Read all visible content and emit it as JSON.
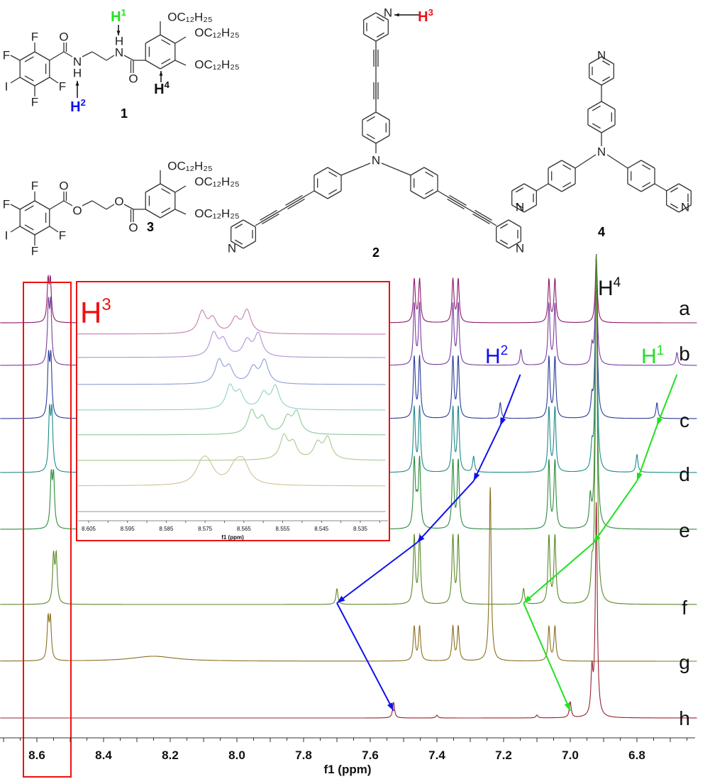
{
  "structures": {
    "c1": {
      "label": "1",
      "atoms": {
        "F": "F",
        "I": "I",
        "O": "O",
        "N": "N",
        "H": "H",
        "chain": "OC₁₂H₂₅"
      }
    },
    "c3": {
      "label": "3",
      "atoms": {
        "F": "F",
        "I": "I",
        "O": "O",
        "chain": "OC₁₂H₂₅"
      }
    },
    "c2": {
      "label": "2",
      "atoms": {
        "N": "N"
      }
    },
    "c4": {
      "label": "4",
      "atoms": {
        "N": "N"
      }
    },
    "protons": {
      "H1": {
        "base": "H",
        "sup": "1",
        "color": "#22e022"
      },
      "H2": {
        "base": "H",
        "sup": "2",
        "color": "#1010ee"
      },
      "H3": {
        "base": "H",
        "sup": "3",
        "color": "#ee1010"
      },
      "H4": {
        "base": "H",
        "sup": "4",
        "color": "#111111"
      }
    }
  },
  "chart_data": [
    {
      "type": "line",
      "title": "",
      "xlabel": "f1 (ppm)",
      "ylabel": "",
      "xlim": [
        8.71,
        6.63
      ],
      "x_reversed": true,
      "x_ticks": [
        "8.6",
        "8.4",
        "8.2",
        "8.0",
        "7.8",
        "7.6",
        "7.4",
        "7.2",
        "7.0",
        "6.8"
      ],
      "highlight_region_ppm": [
        8.62,
        8.48
      ],
      "annotations": [
        {
          "text_base": "H",
          "text_sup": "4",
          "color": "#111111",
          "ppm": 6.92
        },
        {
          "text_base": "H",
          "text_sup": "2",
          "color": "#1010ee",
          "path_ppm": [
            7.15,
            7.21,
            7.29,
            7.46,
            7.7,
            7.53
          ]
        },
        {
          "text_base": "H",
          "text_sup": "1",
          "color": "#22e022",
          "path_ppm": [
            6.68,
            6.74,
            6.8,
            6.93,
            7.14,
            7.0
          ]
        }
      ],
      "series": [
        {
          "name": "a",
          "color": "#8b1a6b",
          "peaks": [
            [
              8.5665,
              55
            ],
            [
              8.5595,
              55
            ],
            [
              7.468,
              60
            ],
            [
              7.452,
              60
            ],
            [
              7.352,
              60
            ],
            [
              7.336,
              60
            ],
            [
              7.064,
              60
            ],
            [
              7.046,
              60
            ],
            [
              6.922,
              95
            ]
          ]
        },
        {
          "name": "b",
          "color": "#7a3d9e",
          "peaks": [
            [
              8.5655,
              80
            ],
            [
              8.5585,
              80
            ],
            [
              7.468,
              85
            ],
            [
              7.452,
              85
            ],
            [
              7.352,
              85
            ],
            [
              7.336,
              85
            ],
            [
              7.064,
              85
            ],
            [
              7.046,
              85
            ],
            [
              6.922,
              155
            ],
            [
              7.148,
              22
            ],
            [
              6.68,
              18
            ],
            [
              6.935,
              25
            ]
          ]
        },
        {
          "name": "c",
          "color": "#2a3d9a",
          "peaks": [
            [
              8.565,
              80
            ],
            [
              8.558,
              80
            ],
            [
              7.468,
              85
            ],
            [
              7.452,
              85
            ],
            [
              7.352,
              85
            ],
            [
              7.336,
              85
            ],
            [
              7.064,
              85
            ],
            [
              7.046,
              85
            ],
            [
              6.922,
              230
            ],
            [
              7.21,
              22
            ],
            [
              6.74,
              22
            ],
            [
              6.935,
              25
            ]
          ]
        },
        {
          "name": "d",
          "color": "#1f8a8a",
          "peaks": [
            [
              8.562,
              80
            ],
            [
              8.555,
              80
            ],
            [
              7.468,
              90
            ],
            [
              7.452,
              90
            ],
            [
              7.352,
              90
            ],
            [
              7.336,
              90
            ],
            [
              7.064,
              90
            ],
            [
              7.046,
              90
            ],
            [
              6.922,
              305
            ],
            [
              7.29,
              22
            ],
            [
              6.8,
              25
            ],
            [
              6.935,
              30
            ]
          ]
        },
        {
          "name": "e",
          "color": "#2e8b3e",
          "peaks": [
            [
              8.557,
              70
            ],
            [
              8.55,
              70
            ],
            [
              7.468,
              95
            ],
            [
              7.452,
              95
            ],
            [
              7.352,
              95
            ],
            [
              7.336,
              95
            ],
            [
              7.064,
              95
            ],
            [
              7.046,
              95
            ],
            [
              6.922,
              385
            ],
            [
              7.46,
              25
            ],
            [
              6.94,
              40
            ]
          ]
        },
        {
          "name": "f",
          "color": "#5a8a2a",
          "peaks": [
            [
              8.55,
              65
            ],
            [
              8.542,
              65
            ],
            [
              7.468,
              95
            ],
            [
              7.452,
              95
            ],
            [
              7.352,
              95
            ],
            [
              7.336,
              95
            ],
            [
              7.064,
              95
            ],
            [
              7.046,
              95
            ],
            [
              6.922,
              490
            ],
            [
              7.7,
              22
            ],
            [
              7.14,
              22
            ],
            [
              6.935,
              40
            ]
          ]
        },
        {
          "name": "g",
          "color": "#8a7020",
          "peaks": [
            [
              8.5665,
              55
            ],
            [
              8.5595,
              55
            ],
            [
              7.468,
              48
            ],
            [
              7.452,
              48
            ],
            [
              7.352,
              48
            ],
            [
              7.336,
              48
            ],
            [
              7.064,
              48
            ],
            [
              7.046,
              48
            ],
            [
              7.24,
              245
            ]
          ],
          "broad": [
            [
              8.25,
              7
            ]
          ]
        },
        {
          "name": "h",
          "color": "#9a2030",
          "peaks": [
            [
              7.53,
              22
            ],
            [
              7.0,
              22
            ],
            [
              6.922,
              300
            ],
            [
              6.935,
              60
            ],
            [
              7.4,
              4
            ],
            [
              7.1,
              4
            ]
          ]
        }
      ]
    },
    {
      "type": "line",
      "inset": true,
      "title_base": "H",
      "title_sup": "3",
      "xlabel": "f1 (ppm)",
      "xlim": [
        8.608,
        8.528
      ],
      "x_reversed": true,
      "x_ticks": [
        "8.605",
        "8.595",
        "8.585",
        "8.575",
        "8.565",
        "8.555",
        "8.545",
        "8.535"
      ],
      "series": [
        {
          "color": "#c37fb0",
          "peaks": [
            [
              8.5758,
              30
            ],
            [
              8.573,
              20
            ],
            [
              8.5672,
              20
            ],
            [
              8.5642,
              32
            ]
          ]
        },
        {
          "color": "#b292d4",
          "peaks": [
            [
              8.5728,
              32
            ],
            [
              8.5703,
              22
            ],
            [
              8.5642,
              22
            ],
            [
              8.5613,
              32
            ]
          ]
        },
        {
          "color": "#8d9fd6",
          "peaks": [
            [
              8.5714,
              32
            ],
            [
              8.5688,
              22
            ],
            [
              8.5626,
              22
            ],
            [
              8.5597,
              32
            ]
          ]
        },
        {
          "color": "#8fd0c8",
          "peaks": [
            [
              8.5686,
              32
            ],
            [
              8.5661,
              22
            ],
            [
              8.5599,
              22
            ],
            [
              8.5569,
              32
            ]
          ]
        },
        {
          "color": "#8fc896",
          "peaks": [
            [
              8.563,
              32
            ],
            [
              8.5602,
              22
            ],
            [
              8.5538,
              22
            ],
            [
              8.5514,
              30
            ]
          ]
        },
        {
          "color": "#a9c98f",
          "peaks": [
            [
              8.5547,
              32
            ],
            [
              8.5523,
              22
            ],
            [
              8.546,
              22
            ],
            [
              8.5434,
              30
            ]
          ]
        },
        {
          "color": "#d2c193",
          "peaks": [
            [
              8.5758,
              25
            ],
            [
              8.5742,
              22
            ],
            [
              8.5672,
              22
            ],
            [
              8.5652,
              28
            ]
          ],
          "width": 0.0019
        },
        {
          "color": "#b08a8a",
          "peaks": []
        }
      ]
    }
  ]
}
